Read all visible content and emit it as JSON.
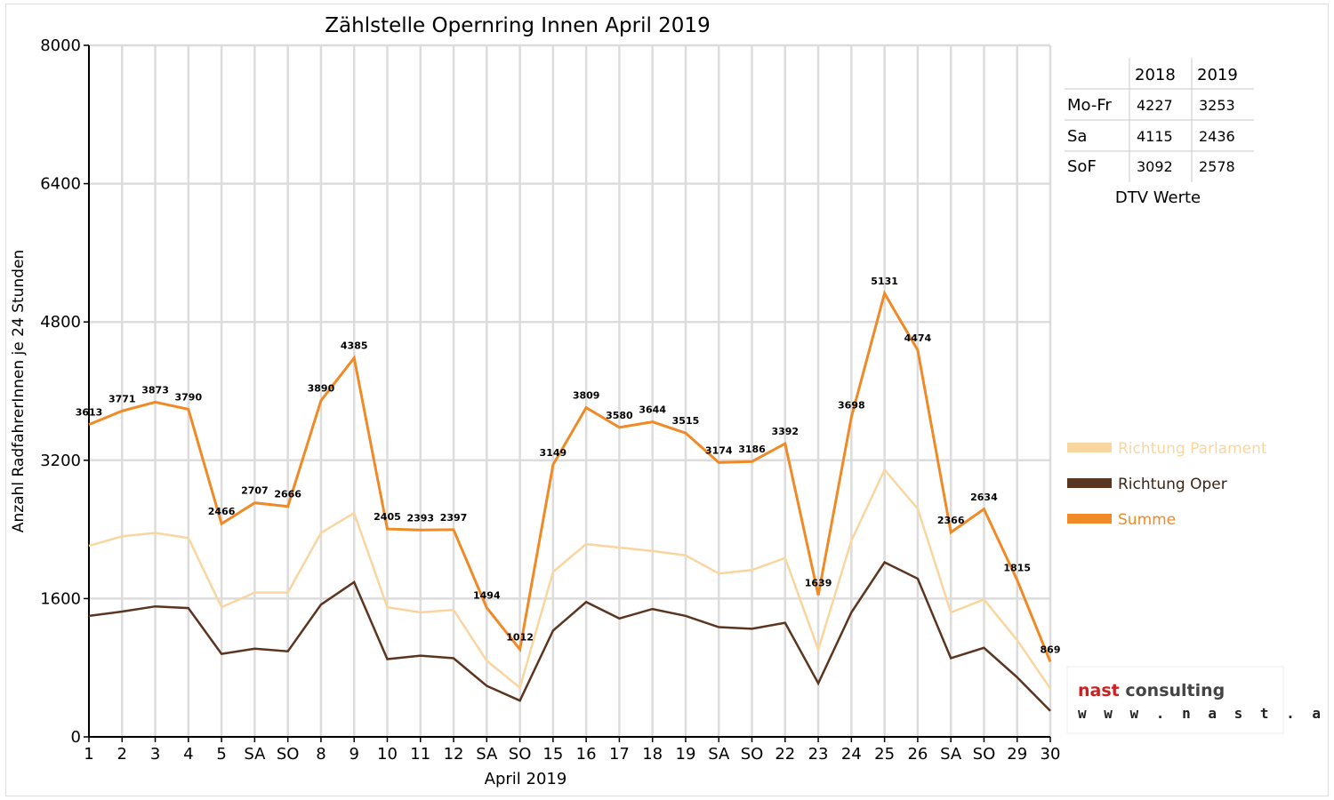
{
  "colors": {
    "parlament": "#f9d5a0",
    "oper": "#5a3520",
    "summe": "#f08a26",
    "grid": "#dcdcdc",
    "holiday": "#ff0000",
    "logo_red": "#cc1f1f",
    "logo_gray": "#444444"
  },
  "chart_data": {
    "type": "line",
    "title": "Zählstelle Opernring Innen April 2019",
    "xlabel": "April 2019",
    "ylabel": "Anzahl RadfahrerInnen je 24 Stunden",
    "ylim": [
      0,
      8000
    ],
    "yticks": [
      "0",
      "1600",
      "3200",
      "4800",
      "6400",
      "8000"
    ],
    "ytick_values": [
      0,
      1600,
      3200,
      4800,
      6400,
      8000
    ],
    "grid": true,
    "legend_position": "right",
    "categories": [
      "1",
      "2",
      "3",
      "4",
      "5",
      "SA",
      "SO",
      "8",
      "9",
      "10",
      "11",
      "12",
      "SA",
      "SO",
      "15",
      "16",
      "17",
      "18",
      "19",
      "SA",
      "SO",
      "22",
      "23",
      "24",
      "25",
      "26",
      "SA",
      "SO",
      "29",
      "30"
    ],
    "holiday_indices": [
      6,
      13,
      20,
      21,
      27
    ],
    "series": [
      {
        "name": "Richtung Parlament",
        "color_key": "parlament",
        "values": [
          2210,
          2320,
          2360,
          2300,
          1500,
          1670,
          1670,
          2360,
          2590,
          1500,
          1440,
          1470,
          880,
          570,
          1910,
          2230,
          2190,
          2150,
          2100,
          1890,
          1930,
          2070,
          1010,
          2270,
          3090,
          2640,
          1440,
          1590,
          1120,
          560
        ]
      },
      {
        "name": "Richtung Oper",
        "color_key": "oper",
        "values": [
          1400,
          1450,
          1510,
          1490,
          960,
          1020,
          990,
          1530,
          1790,
          900,
          940,
          910,
          590,
          420,
          1230,
          1560,
          1370,
          1480,
          1400,
          1270,
          1250,
          1320,
          620,
          1440,
          2020,
          1830,
          910,
          1030,
          690,
          300
        ]
      },
      {
        "name": "Summe",
        "color_key": "summe",
        "values": [
          3613,
          3771,
          3873,
          3790,
          2466,
          2707,
          2666,
          3890,
          4385,
          2405,
          2393,
          2397,
          1494,
          1012,
          3149,
          3809,
          3580,
          3644,
          3515,
          3174,
          3186,
          3392,
          1639,
          3698,
          5131,
          4474,
          2366,
          2634,
          1815,
          869
        ]
      }
    ],
    "data_labels": [
      "3613",
      "3771",
      "3873",
      "3790",
      "2466",
      "2707",
      "2666",
      "3890",
      "4385",
      "2405",
      "2393",
      "2397",
      "1494",
      "1012",
      "3149",
      "3809",
      "3580",
      "3644",
      "3515",
      "3174",
      "3186",
      "3392",
      "1639",
      "3698",
      "5131",
      "4474",
      "2366",
      "2634",
      "1815",
      "869"
    ]
  },
  "dtv_table": {
    "headers": [
      "",
      "2018",
      "2019"
    ],
    "rows": [
      {
        "label": "Mo-Fr",
        "v2018": "4227",
        "v2019": "3253"
      },
      {
        "label": "Sa",
        "v2018": "4115",
        "v2019": "2436"
      },
      {
        "label": "SoF",
        "v2018": "3092",
        "v2019": "2578"
      }
    ],
    "caption": "DTV Werte"
  },
  "logo": {
    "line1": "nast consulting",
    "line2": "w w w . n a s t . a t"
  }
}
